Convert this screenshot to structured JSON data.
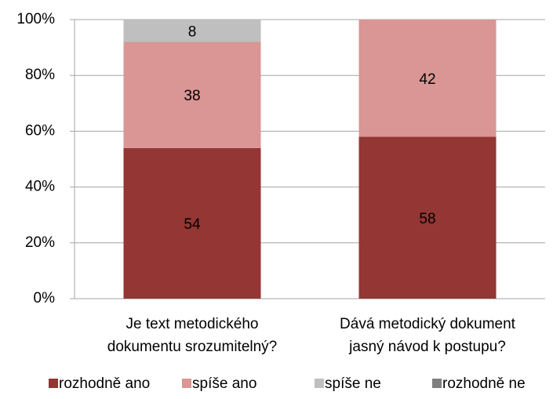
{
  "chart_data": {
    "type": "stacked_bar",
    "categories": [
      "Je text metodického\ndokumentu srozumitelný?",
      "Dává metodický dokument\njasný návod k postupu?"
    ],
    "series": [
      {
        "name": "rozhodně ano",
        "color": "#943634",
        "values": [
          54,
          58
        ]
      },
      {
        "name": "spíše ano",
        "color": "#d99694",
        "values": [
          38,
          42
        ]
      },
      {
        "name": "spíše ne",
        "color": "#bfbfbf",
        "values": [
          8,
          0
        ]
      },
      {
        "name": "rozhodně ne",
        "color": "#7f7f7f",
        "values": [
          0,
          0
        ]
      }
    ],
    "ylim": [
      0,
      100
    ],
    "yticks": [
      {
        "value": 0,
        "label": "0%"
      },
      {
        "value": 20,
        "label": "20%"
      },
      {
        "value": 40,
        "label": "40%"
      },
      {
        "value": 60,
        "label": "60%"
      },
      {
        "value": 80,
        "label": "80%"
      },
      {
        "value": 100,
        "label": "100%"
      }
    ],
    "grid": true,
    "legend": "bottom"
  }
}
